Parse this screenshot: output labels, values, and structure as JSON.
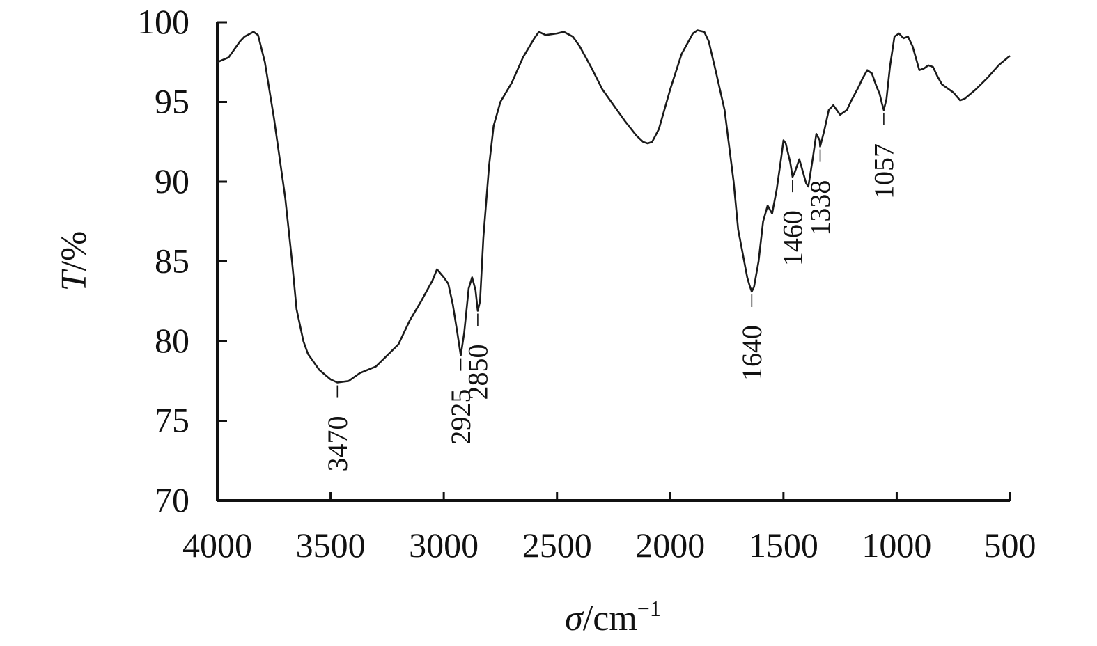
{
  "chart_data": {
    "type": "line",
    "xlabel": {
      "sym": "σ",
      "unit": "/cm",
      "sup": "−1"
    },
    "ylabel": {
      "sym": "T",
      "unit": "/%"
    },
    "xlim": [
      4000,
      500
    ],
    "ylim": [
      70,
      100
    ],
    "x_ticks": [
      4000,
      3500,
      3000,
      2500,
      2000,
      1500,
      1000,
      500
    ],
    "x_tick_labels": [
      "4000",
      "3500",
      "3000",
      "2500",
      "2000",
      "1500",
      "1000",
      "500"
    ],
    "y_ticks": [
      100,
      95,
      90,
      85,
      80,
      75,
      70
    ],
    "y_tick_labels": [
      "100",
      "95",
      "90",
      "85",
      "80",
      "75",
      "70"
    ],
    "grid": false,
    "series": [
      {
        "x": [
          4000,
          3950,
          3900,
          3880,
          3840,
          3820,
          3790,
          3750,
          3700,
          3670,
          3650,
          3620,
          3600,
          3550,
          3500,
          3470,
          3420,
          3370,
          3300,
          3200,
          3150,
          3100,
          3050,
          3030,
          3000,
          2980,
          2960,
          2940,
          2925,
          2910,
          2890,
          2875,
          2860,
          2850,
          2840,
          2825,
          2800,
          2780,
          2750,
          2700,
          2650,
          2600,
          2580,
          2550,
          2500,
          2470,
          2430,
          2400,
          2350,
          2300,
          2250,
          2200,
          2150,
          2120,
          2100,
          2080,
          2050,
          2000,
          1950,
          1900,
          1880,
          1850,
          1830,
          1800,
          1760,
          1720,
          1700,
          1680,
          1660,
          1650,
          1640,
          1630,
          1610,
          1590,
          1570,
          1550,
          1530,
          1510,
          1500,
          1490,
          1470,
          1460,
          1450,
          1430,
          1420,
          1400,
          1390,
          1370,
          1355,
          1340,
          1338,
          1320,
          1300,
          1280,
          1250,
          1220,
          1200,
          1170,
          1150,
          1130,
          1110,
          1090,
          1075,
          1065,
          1057,
          1045,
          1030,
          1010,
          990,
          970,
          950,
          930,
          900,
          880,
          860,
          840,
          820,
          800,
          780,
          750,
          720,
          700,
          650,
          600,
          550,
          500
        ],
        "values": [
          97.5,
          97.8,
          98.8,
          99.1,
          99.4,
          99.2,
          97.5,
          94.0,
          89.0,
          85.0,
          82.0,
          80.0,
          79.2,
          78.2,
          77.6,
          77.4,
          77.5,
          78.0,
          78.4,
          79.8,
          81.3,
          82.5,
          83.8,
          84.5,
          84.0,
          83.6,
          82.3,
          80.5,
          79.1,
          80.5,
          83.3,
          84.0,
          83.2,
          81.9,
          82.5,
          86.5,
          91.0,
          93.5,
          95.0,
          96.2,
          97.8,
          99.0,
          99.4,
          99.2,
          99.3,
          99.4,
          99.1,
          98.5,
          97.2,
          95.8,
          94.8,
          93.8,
          92.9,
          92.5,
          92.4,
          92.5,
          93.3,
          95.8,
          98.0,
          99.3,
          99.5,
          99.4,
          98.8,
          97.0,
          94.5,
          90.0,
          87.0,
          85.5,
          84.0,
          83.5,
          83.1,
          83.4,
          85.0,
          87.5,
          88.5,
          88.0,
          89.5,
          91.5,
          92.6,
          92.4,
          91.2,
          90.3,
          90.6,
          91.4,
          90.9,
          89.9,
          89.7,
          91.5,
          93.0,
          92.6,
          92.2,
          93.2,
          94.5,
          94.8,
          94.2,
          94.5,
          95.1,
          95.9,
          96.5,
          97.0,
          96.8,
          96.0,
          95.5,
          94.9,
          94.5,
          95.2,
          97.2,
          99.1,
          99.3,
          99.0,
          99.1,
          98.5,
          97.0,
          97.1,
          97.3,
          97.2,
          96.6,
          96.1,
          95.9,
          95.6,
          95.1,
          95.2,
          95.8,
          96.5,
          97.3,
          97.9
        ]
      }
    ],
    "annotations": [
      "3470",
      "2925",
      "2850",
      "1640",
      "1460",
      "1338",
      "1057"
    ]
  }
}
